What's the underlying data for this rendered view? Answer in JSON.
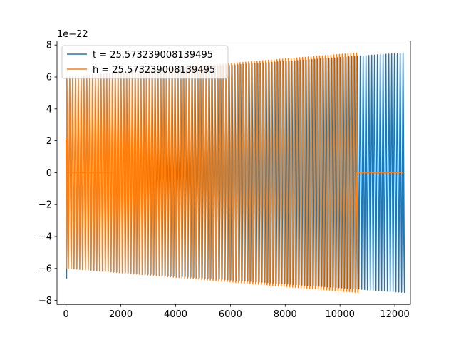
{
  "chart_data": {
    "type": "line",
    "title": "",
    "xlabel": "",
    "ylabel": "",
    "offset_text": "1e−22",
    "xlim": [
      -330,
      12570
    ],
    "ylim": [
      -8.25,
      8.25
    ],
    "x_ticks": [
      0,
      2000,
      4000,
      6000,
      8000,
      10000,
      12000
    ],
    "x_tick_labels": [
      "0",
      "2000",
      "4000",
      "6000",
      "8000",
      "10000",
      "12000"
    ],
    "y_ticks": [
      -8,
      -6,
      -4,
      -2,
      0,
      2,
      4,
      6,
      8
    ],
    "y_tick_labels": [
      "−8",
      "−6",
      "−4",
      "−2",
      "0",
      "2",
      "4",
      "6",
      "8"
    ],
    "legend_position": "upper-left",
    "grid": false,
    "series": [
      {
        "name": "t = 25.573239008139495",
        "color": "#1f77b4",
        "x_start": 0,
        "x_end": 12300,
        "amplitude_start": 6.0,
        "amplitude_end": 7.5,
        "initial_min": -6.6,
        "cycles": 118
      },
      {
        "name": "h = 25.573239008139495",
        "color": "#ff7f0e",
        "x_start": 0,
        "x_end": 10600,
        "amplitude_start": 6.0,
        "amplitude_end": 7.5,
        "initial_min": -6.0,
        "gap_range": [
          0,
          1750
        ],
        "flat_after": [
          10600,
          12300
        ],
        "cycles": 102
      }
    ]
  }
}
